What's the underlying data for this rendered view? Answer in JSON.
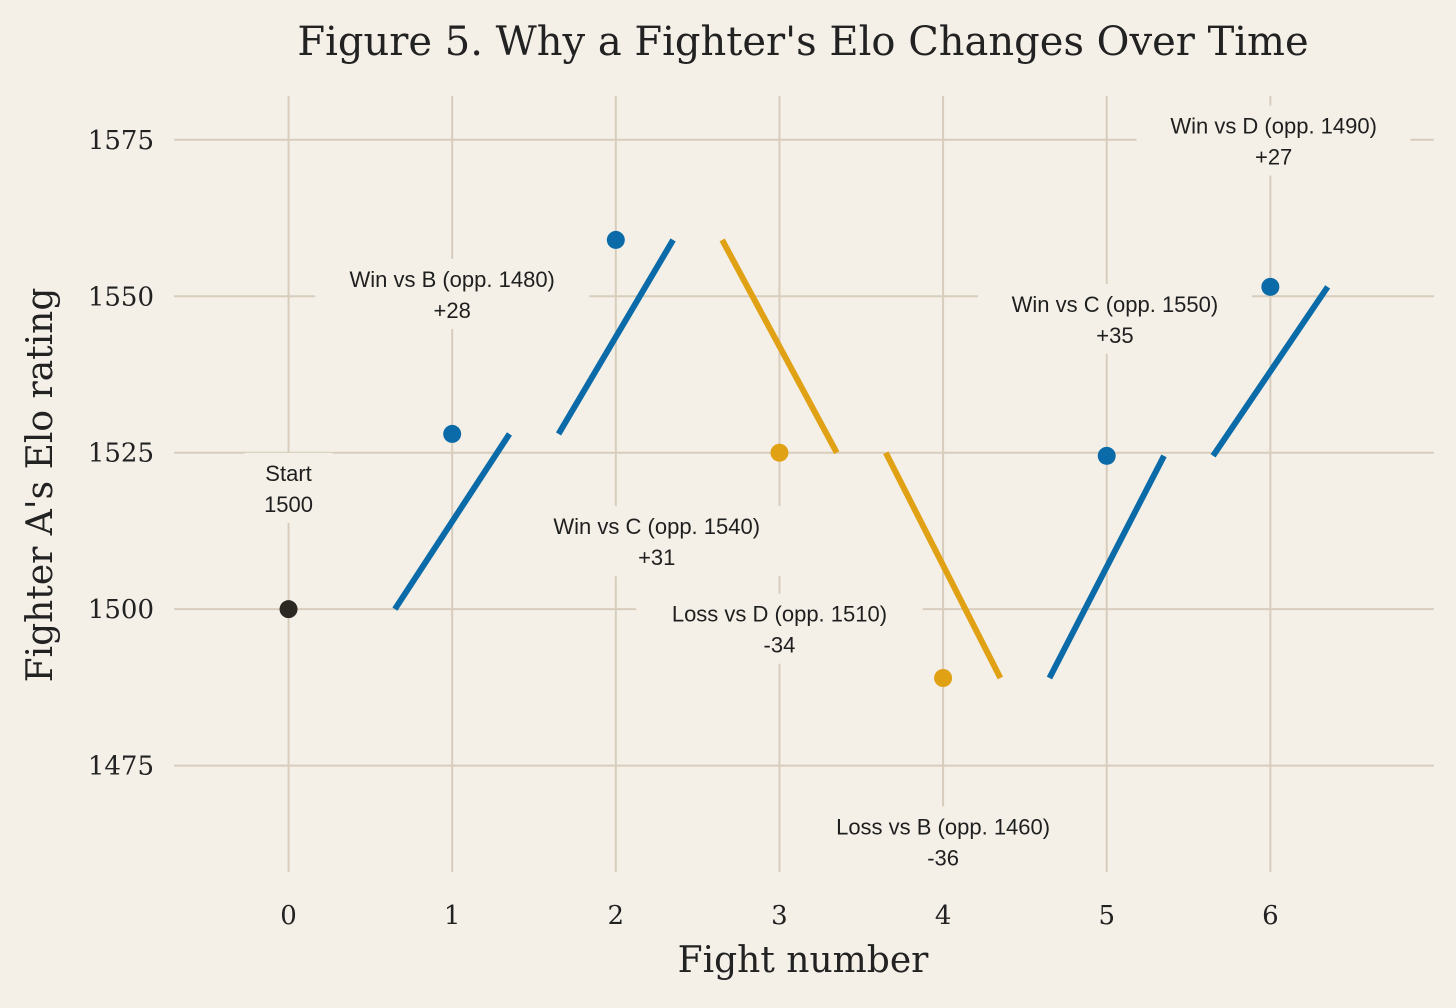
{
  "chart_data": {
    "type": "line",
    "title": "Figure 5. Why a Fighter's Elo Changes Over Time",
    "xlabel": "Fight number",
    "ylabel": "Fighter A's Elo rating",
    "x": [
      0,
      1,
      2,
      3,
      4,
      5,
      6
    ],
    "x_ticks": [
      0,
      1,
      2,
      3,
      4,
      5,
      6
    ],
    "y_ticks": [
      1475,
      1500,
      1525,
      1550,
      1575
    ],
    "xlim": [
      -0.7,
      7.0
    ],
    "ylim": [
      1458,
      1582
    ],
    "grid": true,
    "colors": {
      "start": "#2b2722",
      "win": "#0b6aa8",
      "loss": "#e0a114",
      "background": "#f4f0e8",
      "grid": "#d8cdbd"
    },
    "points": [
      {
        "x": 0,
        "y": 1500,
        "kind": "start"
      },
      {
        "x": 1,
        "y": 1528,
        "kind": "win"
      },
      {
        "x": 2,
        "y": 1559,
        "kind": "win"
      },
      {
        "x": 3,
        "y": 1525,
        "kind": "loss"
      },
      {
        "x": 4,
        "y": 1489,
        "kind": "loss"
      },
      {
        "x": 5,
        "y": 1524.5,
        "kind": "win"
      },
      {
        "x": 6,
        "y": 1551.5,
        "kind": "win"
      }
    ],
    "segments": [
      {
        "x": [
          0.65,
          1.35
        ],
        "y": [
          1500,
          1528
        ],
        "kind": "win"
      },
      {
        "x": [
          1.65,
          2.35
        ],
        "y": [
          1528,
          1559
        ],
        "kind": "win"
      },
      {
        "x": [
          2.65,
          3.35
        ],
        "y": [
          1559,
          1525
        ],
        "kind": "loss"
      },
      {
        "x": [
          3.65,
          4.35
        ],
        "y": [
          1525,
          1489
        ],
        "kind": "loss"
      },
      {
        "x": [
          4.65,
          5.35
        ],
        "y": [
          1489,
          1524.5
        ],
        "kind": "win"
      },
      {
        "x": [
          5.65,
          6.35
        ],
        "y": [
          1524.5,
          1551.5
        ],
        "kind": "win"
      }
    ],
    "annotations": [
      {
        "x": 0,
        "y": 1520.5,
        "lines": [
          "Start",
          "1500"
        ]
      },
      {
        "x": 1,
        "y": 1551.5,
        "lines": [
          "Win vs B (opp. 1480)",
          "+28"
        ]
      },
      {
        "x": 2.25,
        "y": 1512,
        "lines": [
          "Win vs C (opp. 1540)",
          "+31"
        ]
      },
      {
        "x": 3,
        "y": 1498,
        "lines": [
          "Loss vs D (opp. 1510)",
          "-34"
        ]
      },
      {
        "x": 4,
        "y": 1464,
        "lines": [
          "Loss vs B (opp. 1460)",
          "-36"
        ]
      },
      {
        "x": 5.05,
        "y": 1547.5,
        "lines": [
          "Win vs C (opp. 1550)",
          "+35"
        ]
      },
      {
        "x": 6.02,
        "y": 1576,
        "lines": [
          "Win vs D (opp. 1490)",
          "+27"
        ]
      }
    ]
  }
}
